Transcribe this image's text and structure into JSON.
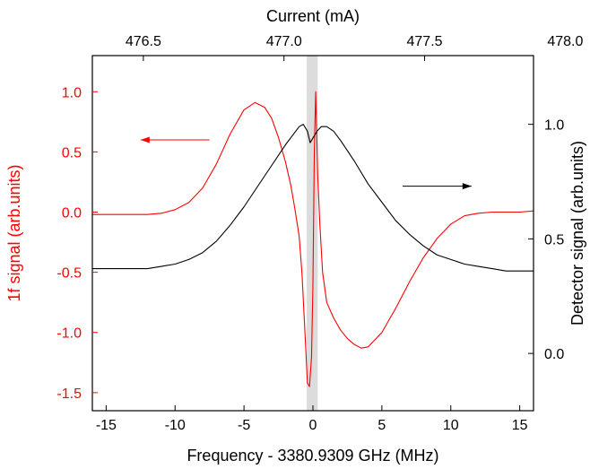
{
  "chart_data": {
    "type": "line",
    "xlabel": "Frequency - 3380.9309 GHz (MHz)",
    "top_xlabel": "Current (mA)",
    "ylabel_left": "1f signal (arb.units)",
    "ylabel_right": "Detector signal (arb.units)",
    "xlim": [
      -16,
      16
    ],
    "ylim_left": [
      -1.65,
      1.3
    ],
    "ylim_right": [
      -0.25,
      1.3
    ],
    "x_ticks": [
      {
        "value": -15,
        "label": "-15"
      },
      {
        "value": -10,
        "label": "-10"
      },
      {
        "value": -5,
        "label": "-5"
      },
      {
        "value": 0,
        "label": "0"
      },
      {
        "value": 5,
        "label": "5"
      },
      {
        "value": 10,
        "label": "10"
      },
      {
        "value": 15,
        "label": "15"
      }
    ],
    "top_ticks": [
      {
        "value": -12.3,
        "label": "476.5"
      },
      {
        "value": -2.1,
        "label": "477.0"
      },
      {
        "value": 8.1,
        "label": "477.5"
      },
      {
        "value": 18.3,
        "label": "478.0"
      }
    ],
    "left_ticks": [
      {
        "value": -1.5,
        "label": "-1.5"
      },
      {
        "value": -1.0,
        "label": "-1.0"
      },
      {
        "value": -0.5,
        "label": "-0.5"
      },
      {
        "value": 0.0,
        "label": "0.0"
      },
      {
        "value": 0.5,
        "label": "0.5"
      },
      {
        "value": 1.0,
        "label": "1.0"
      }
    ],
    "right_ticks": [
      {
        "value": 0.0,
        "label": "0.0"
      },
      {
        "value": 0.5,
        "label": "0.5"
      },
      {
        "value": 1.0,
        "label": "1.0"
      }
    ],
    "highlight_band": {
      "x0": -0.45,
      "x1": 0.35,
      "color": "#dcdcdc"
    },
    "series": [
      {
        "axis": "left",
        "color": "#ff0000",
        "x": [
          -16,
          -14,
          -12,
          -11,
          -10,
          -9,
          -8,
          -7,
          -6,
          -5,
          -4.2,
          -3.5,
          -3,
          -2.5,
          -2,
          -1.6,
          -1.3,
          -1.0,
          -0.8,
          -0.6,
          -0.4,
          -0.25,
          -0.1,
          0.0,
          0.1,
          0.2,
          0.35,
          0.5,
          0.7,
          1.0,
          1.5,
          2.0,
          2.5,
          3.0,
          3.5,
          4.0,
          5.0,
          6.0,
          7.0,
          8.0,
          9.0,
          10.0,
          11.0,
          12.0,
          13.0,
          14.0,
          15.0,
          16.0
        ],
        "y": [
          -0.02,
          -0.02,
          -0.02,
          -0.01,
          0.02,
          0.08,
          0.2,
          0.4,
          0.65,
          0.85,
          0.91,
          0.87,
          0.78,
          0.62,
          0.42,
          0.22,
          0.02,
          -0.2,
          -0.5,
          -0.95,
          -1.42,
          -1.45,
          -1.2,
          -0.6,
          0.5,
          1.0,
          0.3,
          -0.1,
          -0.5,
          -0.75,
          -0.88,
          -0.98,
          -1.05,
          -1.1,
          -1.13,
          -1.12,
          -1.0,
          -0.8,
          -0.58,
          -0.38,
          -0.22,
          -0.1,
          -0.03,
          -0.01,
          0.0,
          0.0,
          0.0,
          0.01
        ]
      },
      {
        "axis": "right",
        "color": "#000000",
        "x": [
          -16,
          -14,
          -12,
          -11,
          -10,
          -9,
          -8,
          -7,
          -6,
          -5,
          -4,
          -3,
          -2,
          -1.5,
          -1.0,
          -0.7,
          -0.4,
          -0.2,
          0.0,
          0.3,
          0.6,
          1.0,
          1.5,
          2.0,
          3.0,
          4.0,
          5.0,
          6.0,
          7.0,
          8.0,
          9.0,
          10.0,
          11.0,
          12.0,
          13.0,
          14.0,
          15.0,
          16.0
        ],
        "y": [
          0.37,
          0.37,
          0.37,
          0.38,
          0.39,
          0.41,
          0.44,
          0.49,
          0.56,
          0.64,
          0.73,
          0.82,
          0.91,
          0.95,
          0.99,
          1.0,
          0.97,
          0.92,
          0.94,
          0.97,
          0.99,
          0.99,
          0.97,
          0.93,
          0.84,
          0.74,
          0.66,
          0.58,
          0.52,
          0.47,
          0.43,
          0.41,
          0.39,
          0.38,
          0.37,
          0.36,
          0.36,
          0.36
        ]
      }
    ],
    "annotations": [
      {
        "type": "arrow",
        "color": "#ff0000",
        "from": [
          -7.5,
          0.6
        ],
        "to": [
          -12.5,
          0.6
        ],
        "axis": "left"
      },
      {
        "type": "arrow",
        "color": "#000000",
        "from": [
          6.5,
          0.73
        ],
        "to": [
          11.5,
          0.73
        ],
        "axis": "right"
      }
    ]
  }
}
